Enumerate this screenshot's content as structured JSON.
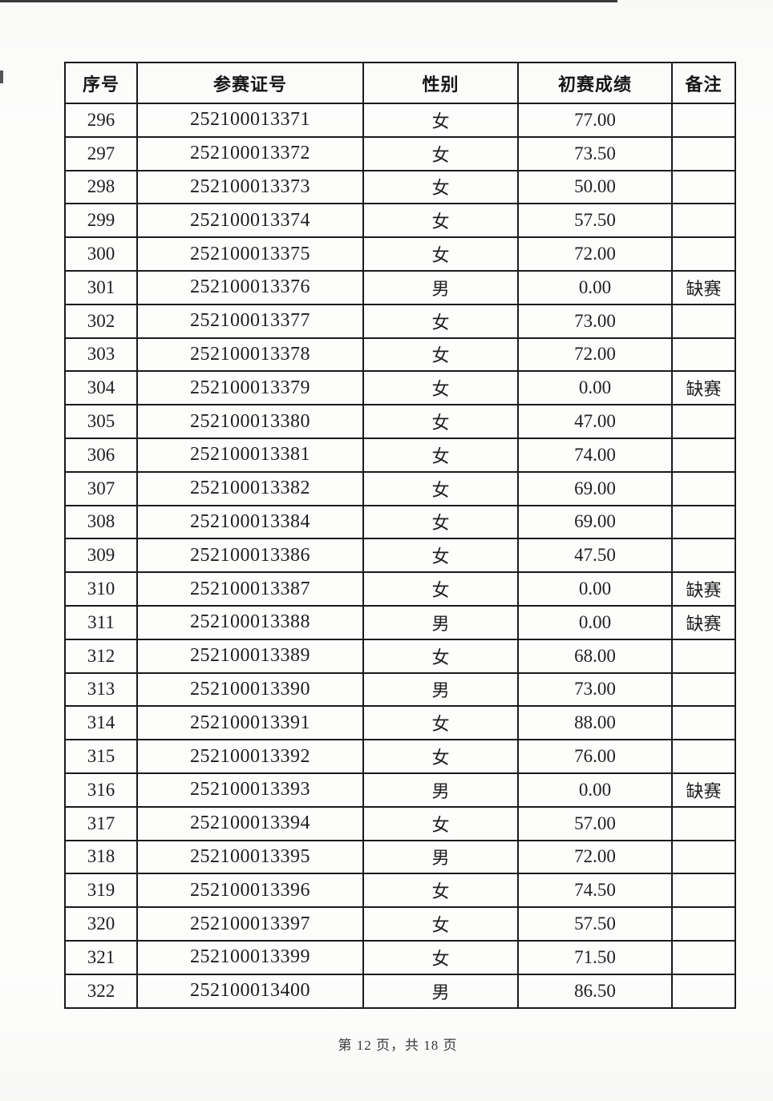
{
  "page": {
    "footer": "第 12 页，共 18 页"
  },
  "table": {
    "columns": [
      "序号",
      "参赛证号",
      "性别",
      "初赛成绩",
      "备注"
    ],
    "rows": [
      {
        "seq": "296",
        "id": "252100013371",
        "gender": "女",
        "score": "77.00",
        "remark": ""
      },
      {
        "seq": "297",
        "id": "252100013372",
        "gender": "女",
        "score": "73.50",
        "remark": ""
      },
      {
        "seq": "298",
        "id": "252100013373",
        "gender": "女",
        "score": "50.00",
        "remark": ""
      },
      {
        "seq": "299",
        "id": "252100013374",
        "gender": "女",
        "score": "57.50",
        "remark": ""
      },
      {
        "seq": "300",
        "id": "252100013375",
        "gender": "女",
        "score": "72.00",
        "remark": ""
      },
      {
        "seq": "301",
        "id": "252100013376",
        "gender": "男",
        "score": "0.00",
        "remark": "缺赛"
      },
      {
        "seq": "302",
        "id": "252100013377",
        "gender": "女",
        "score": "73.00",
        "remark": ""
      },
      {
        "seq": "303",
        "id": "252100013378",
        "gender": "女",
        "score": "72.00",
        "remark": ""
      },
      {
        "seq": "304",
        "id": "252100013379",
        "gender": "女",
        "score": "0.00",
        "remark": "缺赛"
      },
      {
        "seq": "305",
        "id": "252100013380",
        "gender": "女",
        "score": "47.00",
        "remark": ""
      },
      {
        "seq": "306",
        "id": "252100013381",
        "gender": "女",
        "score": "74.00",
        "remark": ""
      },
      {
        "seq": "307",
        "id": "252100013382",
        "gender": "女",
        "score": "69.00",
        "remark": ""
      },
      {
        "seq": "308",
        "id": "252100013384",
        "gender": "女",
        "score": "69.00",
        "remark": ""
      },
      {
        "seq": "309",
        "id": "252100013386",
        "gender": "女",
        "score": "47.50",
        "remark": ""
      },
      {
        "seq": "310",
        "id": "252100013387",
        "gender": "女",
        "score": "0.00",
        "remark": "缺赛"
      },
      {
        "seq": "311",
        "id": "252100013388",
        "gender": "男",
        "score": "0.00",
        "remark": "缺赛"
      },
      {
        "seq": "312",
        "id": "252100013389",
        "gender": "女",
        "score": "68.00",
        "remark": ""
      },
      {
        "seq": "313",
        "id": "252100013390",
        "gender": "男",
        "score": "73.00",
        "remark": ""
      },
      {
        "seq": "314",
        "id": "252100013391",
        "gender": "女",
        "score": "88.00",
        "remark": ""
      },
      {
        "seq": "315",
        "id": "252100013392",
        "gender": "女",
        "score": "76.00",
        "remark": ""
      },
      {
        "seq": "316",
        "id": "252100013393",
        "gender": "男",
        "score": "0.00",
        "remark": "缺赛"
      },
      {
        "seq": "317",
        "id": "252100013394",
        "gender": "女",
        "score": "57.00",
        "remark": ""
      },
      {
        "seq": "318",
        "id": "252100013395",
        "gender": "男",
        "score": "72.00",
        "remark": ""
      },
      {
        "seq": "319",
        "id": "252100013396",
        "gender": "女",
        "score": "74.50",
        "remark": ""
      },
      {
        "seq": "320",
        "id": "252100013397",
        "gender": "女",
        "score": "57.50",
        "remark": ""
      },
      {
        "seq": "321",
        "id": "252100013399",
        "gender": "女",
        "score": "71.50",
        "remark": ""
      },
      {
        "seq": "322",
        "id": "252100013400",
        "gender": "男",
        "score": "86.50",
        "remark": ""
      }
    ]
  }
}
